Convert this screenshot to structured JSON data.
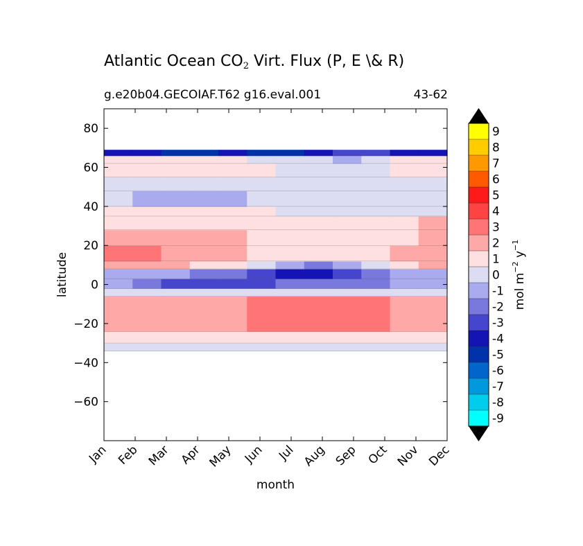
{
  "chart_data": {
    "type": "heatmap",
    "title_prefix": "Atlantic Ocean CO",
    "title_subscript": "2",
    "title_suffix": " Virt. Flux (P, E \\& R)",
    "subtitle_left": "g.e20b04.GECOIAF.T62 g16.eval.001",
    "subtitle_right": "43-62",
    "xlabel": "month",
    "ylabel": "latitude",
    "x_tick_labels": [
      "Jan",
      "Feb",
      "Mar",
      "Apr",
      "May",
      "Jun",
      "Jul",
      "Aug",
      "Sep",
      "Oct",
      "Nov",
      "Dec"
    ],
    "ylim": [
      -80,
      90
    ],
    "y_ticks": [
      80,
      60,
      40,
      20,
      0,
      -20,
      -40,
      -60
    ],
    "y_tick_labels": [
      "80",
      "60",
      "40",
      "20",
      "0",
      "−20",
      "−40",
      "−60"
    ],
    "data_lat_range": [
      -34,
      69
    ],
    "colorbar": {
      "label": "mol m",
      "label_sup1": "−2",
      "label_mid": " y",
      "label_sup2": "−1",
      "levels": [
        "9",
        "8",
        "7",
        "6",
        "5",
        "4",
        "3",
        "2",
        "1",
        "0",
        "-1",
        "-2",
        "-3",
        "-4",
        "-5",
        "-6",
        "-7",
        "-8",
        "-9"
      ],
      "colors": [
        "#ffff00",
        "#ffcc00",
        "#ff9900",
        "#ff5a00",
        "#ff1a1a",
        "#ff4242",
        "#ff7575",
        "#ffa8a8",
        "#ffe0e0",
        "#dcdcf2",
        "#aaaaee",
        "#7878dd",
        "#4646cc",
        "#1414b4",
        "#0033aa",
        "#0066cc",
        "#0099dd",
        "#00ccee",
        "#00ffff"
      ],
      "extend_color": "#000000"
    },
    "bands": [
      {
        "lat": [
          -34,
          -30
        ],
        "values": [
          0,
          0,
          0,
          0,
          0,
          0,
          0,
          0,
          0,
          0,
          0,
          0
        ]
      },
      {
        "lat": [
          -30,
          -24
        ],
        "values": [
          1,
          1,
          1,
          1,
          1,
          1,
          1,
          1,
          1,
          1,
          1,
          1
        ]
      },
      {
        "lat": [
          -24,
          -6
        ],
        "values": [
          2,
          2,
          2,
          2,
          2,
          3,
          3,
          3,
          3,
          3,
          2,
          2
        ]
      },
      {
        "lat": [
          -6,
          -2
        ],
        "values": [
          0,
          0,
          0,
          0,
          0,
          0,
          0,
          0,
          0,
          0,
          0,
          0
        ]
      },
      {
        "lat": [
          -2,
          3
        ],
        "values": [
          -1,
          -2,
          -3,
          -3,
          -3,
          -3,
          -2,
          -2,
          -2,
          -2,
          -1,
          -1
        ]
      },
      {
        "lat": [
          3,
          8
        ],
        "values": [
          -1,
          -1,
          -1,
          -2,
          -2,
          -3,
          -4,
          -4,
          -3,
          -2,
          -1,
          -1
        ]
      },
      {
        "lat": [
          8,
          12
        ],
        "values": [
          2,
          2,
          2,
          1,
          1,
          0,
          -1,
          -2,
          -1,
          0,
          1,
          2
        ]
      },
      {
        "lat": [
          12,
          20
        ],
        "values": [
          3,
          3,
          2,
          2,
          2,
          1,
          1,
          1,
          1,
          1,
          2,
          2
        ]
      },
      {
        "lat": [
          20,
          28
        ],
        "values": [
          2,
          2,
          2,
          2,
          2,
          1,
          1,
          1,
          1,
          1,
          1,
          2
        ]
      },
      {
        "lat": [
          28,
          35
        ],
        "values": [
          1,
          1,
          1,
          1,
          1,
          1,
          1,
          1,
          1,
          1,
          1,
          2
        ]
      },
      {
        "lat": [
          35,
          40
        ],
        "values": [
          1,
          1,
          1,
          1,
          1,
          1,
          0,
          0,
          0,
          0,
          0,
          0
        ]
      },
      {
        "lat": [
          40,
          48
        ],
        "values": [
          0,
          -1,
          -1,
          -1,
          -1,
          0,
          0,
          0,
          0,
          0,
          0,
          0
        ]
      },
      {
        "lat": [
          48,
          55
        ],
        "values": [
          0,
          0,
          0,
          0,
          0,
          0,
          0,
          0,
          0,
          0,
          0,
          0
        ]
      },
      {
        "lat": [
          55,
          62
        ],
        "values": [
          1,
          1,
          1,
          1,
          1,
          1,
          0,
          0,
          0,
          0,
          1,
          1
        ]
      },
      {
        "lat": [
          62,
          66
        ],
        "values": [
          1,
          1,
          1,
          1,
          1,
          0,
          0,
          0,
          -1,
          0,
          1,
          1
        ]
      },
      {
        "lat": [
          66,
          69
        ],
        "values": [
          -4,
          -4,
          -5,
          -5,
          -4,
          -5,
          -5,
          -4,
          -3,
          -3,
          -4,
          -4
        ]
      }
    ]
  }
}
